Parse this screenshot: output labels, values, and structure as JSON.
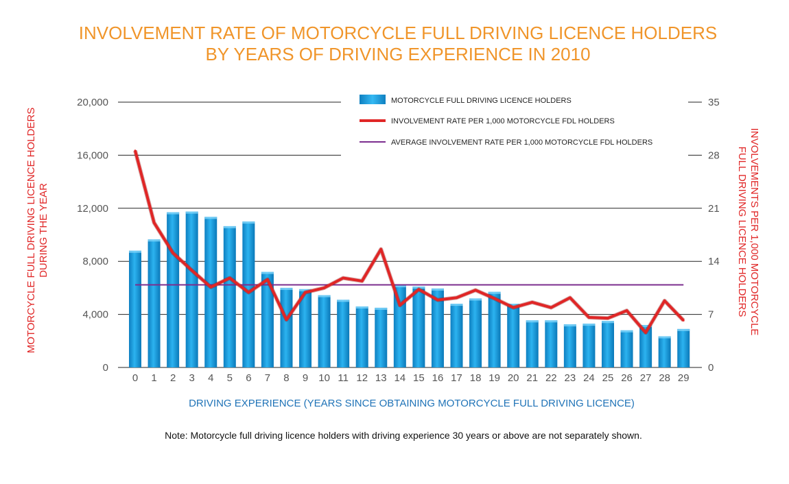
{
  "chart_data": {
    "type": "bar",
    "title_lines": [
      "INVOLVEMENT RATE OF MOTORCYCLE FULL DRIVING LICENCE HOLDERS",
      "BY YEARS OF DRIVING EXPERIENCE IN 2010"
    ],
    "xlabel": "DRIVING EXPERIENCE (YEARS SINCE OBTAINING MOTORCYCLE FULL DRIVING LICENCE)",
    "ylabel_left_lines": [
      "MOTORCYCLE FULL DRIVING LICENCE HOLDERS",
      "DURING THE YEAR"
    ],
    "ylabel_right_lines": [
      "INVOLVEMENTS PER 1,000 MOTORCYCLE",
      "FULL DRIVING LICENCE HOLDERS"
    ],
    "categories": [
      "0",
      "1",
      "2",
      "3",
      "4",
      "5",
      "6",
      "7",
      "8",
      "9",
      "10",
      "11",
      "12",
      "13",
      "14",
      "15",
      "16",
      "17",
      "18",
      "19",
      "20",
      "21",
      "22",
      "23",
      "24",
      "25",
      "26",
      "27",
      "28",
      "29"
    ],
    "y_left": {
      "range": [
        0,
        20000
      ],
      "ticks": [
        0,
        4000,
        8000,
        12000,
        16000,
        20000
      ],
      "tick_labels": [
        "0",
        "4,000",
        "8,000",
        "12,000",
        "16,000",
        "20,000"
      ]
    },
    "y_right": {
      "range": [
        0,
        35
      ],
      "ticks": [
        0,
        7,
        14,
        21,
        28,
        35
      ],
      "tick_labels": [
        "0",
        "7",
        "14",
        "21",
        "28",
        "35"
      ]
    },
    "series": [
      {
        "name": "MOTORCYCLE FULL DRIVING LICENCE HOLDERS",
        "kind": "bar",
        "axis": "left",
        "color": "#1a9fe0",
        "values": [
          8800,
          9650,
          11700,
          11750,
          11350,
          10650,
          11000,
          7200,
          6000,
          5900,
          5450,
          5100,
          4600,
          4500,
          6200,
          6100,
          5950,
          4800,
          5200,
          5700,
          4800,
          3550,
          3550,
          3250,
          3300,
          3500,
          2800,
          3200,
          2350,
          2900
        ]
      },
      {
        "name": "INVOLVEMENT RATE PER 1,000 MOTORCYCLE FDL HOLDERS",
        "kind": "line",
        "axis": "right",
        "color": "#e02626",
        "values": [
          28.6,
          19.1,
          15.1,
          12.8,
          10.6,
          11.8,
          9.9,
          11.6,
          6.3,
          9.9,
          10.5,
          11.8,
          11.4,
          15.6,
          8.2,
          10.3,
          8.9,
          9.2,
          10.2,
          9.1,
          7.9,
          8.6,
          7.9,
          9.2,
          6.6,
          6.5,
          7.5,
          4.6,
          8.8,
          6.2
        ]
      },
      {
        "name": "AVERAGE INVOLVEMENT RATE PER 1,000 MOTORCYCLE FDL HOLDERS",
        "kind": "hline",
        "axis": "right",
        "color": "#7b2d8e",
        "value": 10.9
      }
    ],
    "legend_position": "top-center",
    "grid": true,
    "note": "Note: Motorcycle full driving licence holders with driving experience 30 years or above are not separately shown."
  }
}
